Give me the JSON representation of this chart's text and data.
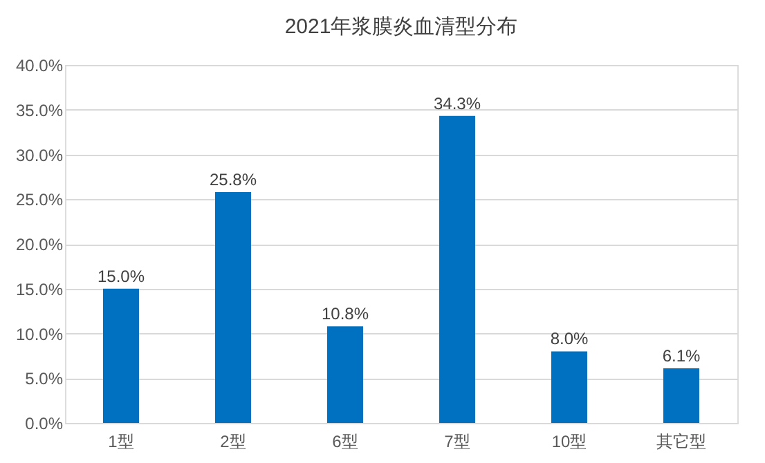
{
  "chart_data": {
    "type": "bar",
    "title": "2021年浆膜炎血清型分布",
    "categories": [
      "1型",
      "2型",
      "6型",
      "7型",
      "10型",
      "其它型"
    ],
    "values": [
      15.0,
      25.8,
      10.8,
      34.3,
      8.0,
      6.1
    ],
    "value_labels": [
      "15.0%",
      "25.8%",
      "10.8%",
      "34.3%",
      "8.0%",
      "6.1%"
    ],
    "color": "#0070c0",
    "ylim": [
      0,
      40
    ],
    "yticks": [
      {
        "value": 0,
        "label": "0.0%"
      },
      {
        "value": 5,
        "label": "5.0%"
      },
      {
        "value": 10,
        "label": "10.0%"
      },
      {
        "value": 15,
        "label": "15.0%"
      },
      {
        "value": 20,
        "label": "20.0%"
      },
      {
        "value": 25,
        "label": "25.0%"
      },
      {
        "value": 30,
        "label": "30.0%"
      },
      {
        "value": 35,
        "label": "35.0%"
      },
      {
        "value": 40,
        "label": "40.0%"
      }
    ],
    "grid": "y"
  }
}
